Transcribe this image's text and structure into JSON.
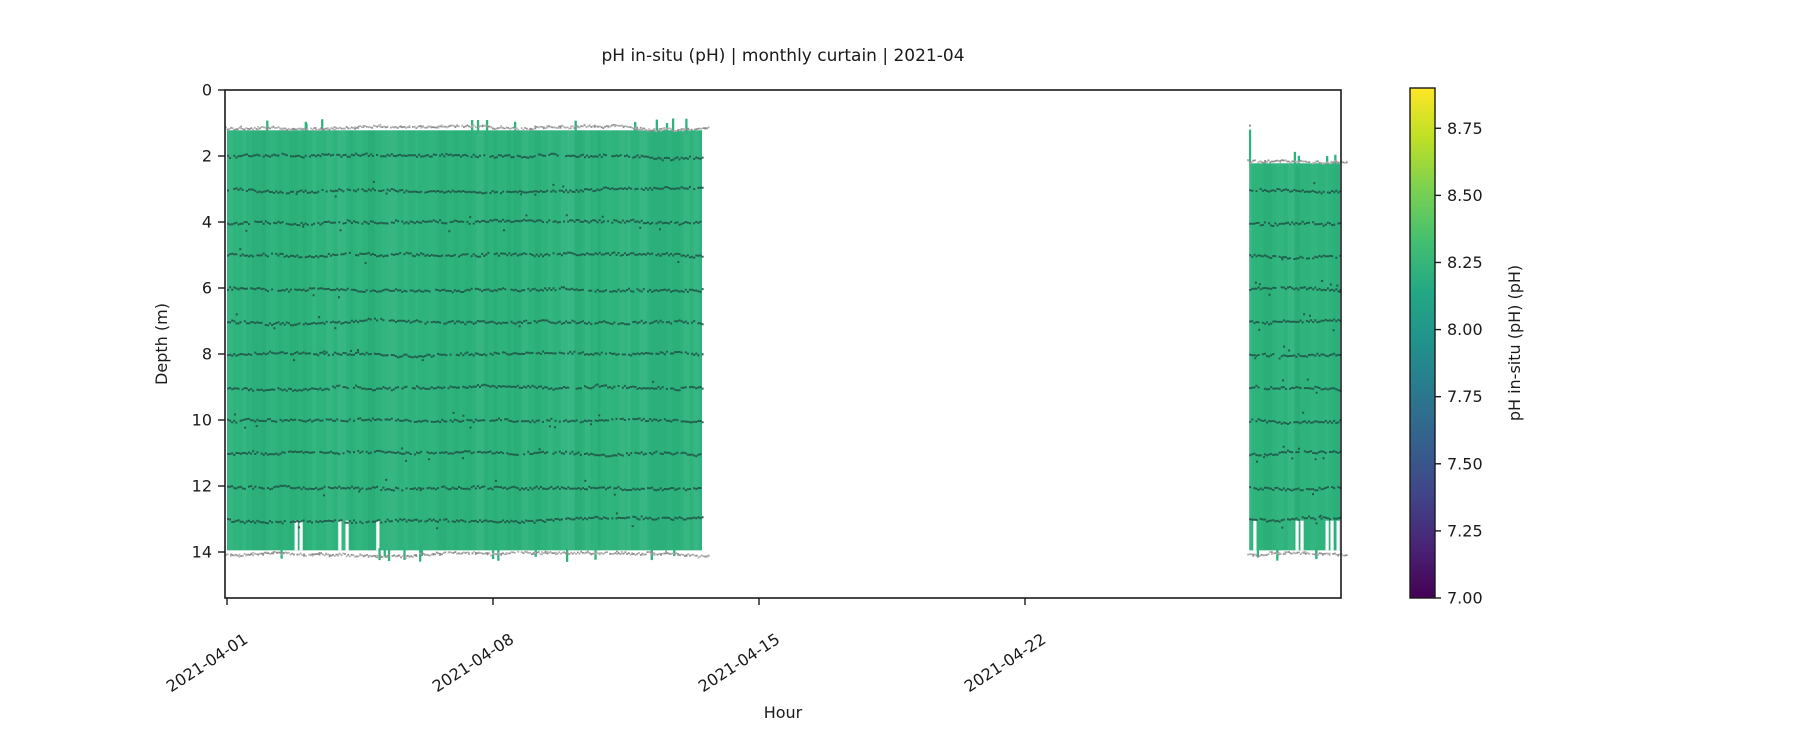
{
  "colors": {
    "background": "#ffffff",
    "curtain_fill": "#2eb37d",
    "trace_dark": "#1f5748",
    "noise_gray_1": "#8f8f8f",
    "noise_gray_2": "#b0b0b0",
    "spine": "#1a1a1a",
    "text": "#1a1a1a"
  },
  "chart_data": {
    "type": "heatmap",
    "title": "pH in-situ (pH) | monthly curtain | 2021-04",
    "xlabel": "Hour",
    "ylabel": "Depth (m)",
    "x_ticks": [
      {
        "day": 0,
        "label": "2021-04-01"
      },
      {
        "day": 7,
        "label": "2021-04-08"
      },
      {
        "day": 14,
        "label": "2021-04-15"
      },
      {
        "day": 21,
        "label": "2021-04-22"
      }
    ],
    "x_range_days": [
      0,
      29.3
    ],
    "y_ticks": [
      0,
      2,
      4,
      6,
      8,
      10,
      12,
      14
    ],
    "y_range": [
      0,
      15.4
    ],
    "grid": false,
    "legend": "none",
    "colorbar": {
      "label": "pH in-situ (pH) (pH)",
      "colormap": "viridis",
      "range": [
        7.0,
        8.9
      ],
      "ticks": [
        {
          "v": 8.75,
          "label": "8.75"
        },
        {
          "v": 8.5,
          "label": "8.50"
        },
        {
          "v": 8.25,
          "label": "8.25"
        },
        {
          "v": 8.0,
          "label": "8.00"
        },
        {
          "v": 7.75,
          "label": "7.75"
        },
        {
          "v": 7.5,
          "label": "7.50"
        },
        {
          "v": 7.25,
          "label": "7.25"
        },
        {
          "v": 7.0,
          "label": "7.00"
        }
      ],
      "stops": [
        [
          0.0,
          "#440154"
        ],
        [
          0.1,
          "#482475"
        ],
        [
          0.2,
          "#414487"
        ],
        [
          0.3,
          "#355f8d"
        ],
        [
          0.4,
          "#2a788e"
        ],
        [
          0.5,
          "#21918c"
        ],
        [
          0.6,
          "#22a884"
        ],
        [
          0.7,
          "#44bf70"
        ],
        [
          0.8,
          "#7ad151"
        ],
        [
          0.9,
          "#bddf26"
        ],
        [
          1.0,
          "#fde725"
        ]
      ]
    },
    "segments": [
      {
        "start_day": 0.0,
        "end_day": 12.5,
        "surface_depth": 1.1,
        "bottom_depth": 14.0,
        "mean_ph": 8.2,
        "trace_depths": [
          2,
          3,
          4,
          5,
          6,
          7,
          8,
          9,
          10,
          11,
          12,
          13
        ],
        "dropout_days": [
          1.82,
          1.95,
          2.97,
          3.16,
          3.97
        ],
        "dropout_depth_range": [
          13.05,
          13.95
        ],
        "scatter": "low"
      },
      {
        "start_day": 26.9,
        "end_day": 29.3,
        "surface_depth": 2.1,
        "bottom_depth": 14.0,
        "mean_ph": 8.2,
        "trace_depths": [
          3,
          4,
          5,
          6,
          7,
          8,
          9,
          10,
          11,
          12,
          13
        ],
        "dropout_days": [
          27.05,
          28.16,
          28.29,
          28.95,
          29.08,
          29.24
        ],
        "dropout_depth_range": [
          13.05,
          13.95
        ],
        "spike": {
          "day": 26.92,
          "to_depth": 1.2
        },
        "scatter": "high"
      }
    ]
  }
}
